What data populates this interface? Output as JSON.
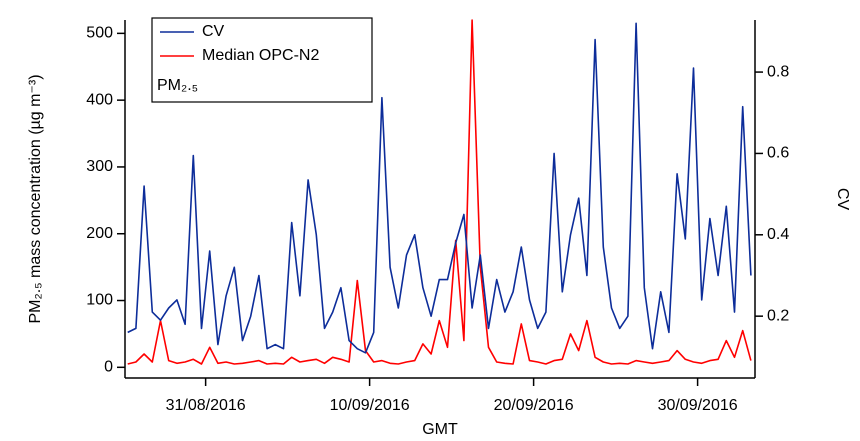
{
  "chart_data": {
    "type": "line",
    "x_label": "GMT",
    "y_label": "PM₂.₅ mass concentration (µg m⁻³)",
    "y2_label": "CV",
    "annotation": "PM₂.₅",
    "legend": "top-left",
    "xlim": [
      "2016-08-26T02:00",
      "2016-10-03T12:00"
    ],
    "xticks": [
      {
        "value": "2016-08-31T00:00",
        "label": "31/08/2016"
      },
      {
        "value": "2016-09-10T00:00",
        "label": "10/09/2016"
      },
      {
        "value": "2016-09-20T00:00",
        "label": "20/09/2016"
      },
      {
        "value": "2016-09-30T00:00",
        "label": "30/09/2016"
      }
    ],
    "ylim": [
      -16,
      520
    ],
    "yticks": [
      0,
      100,
      200,
      300,
      400,
      500
    ],
    "y2lim": [
      0.048,
      0.928
    ],
    "y2ticks": [
      0.2,
      0.4,
      0.6,
      0.8
    ],
    "x": [
      "2016-08-26T06:00",
      "2016-08-26T18:00",
      "2016-08-27T06:00",
      "2016-08-27T18:00",
      "2016-08-28T06:00",
      "2016-08-28T18:00",
      "2016-08-29T06:00",
      "2016-08-29T18:00",
      "2016-08-30T06:00",
      "2016-08-30T18:00",
      "2016-08-31T06:00",
      "2016-08-31T18:00",
      "2016-09-01T06:00",
      "2016-09-01T18:00",
      "2016-09-02T06:00",
      "2016-09-02T18:00",
      "2016-09-03T06:00",
      "2016-09-03T18:00",
      "2016-09-04T06:00",
      "2016-09-04T18:00",
      "2016-09-05T06:00",
      "2016-09-05T18:00",
      "2016-09-06T06:00",
      "2016-09-06T18:00",
      "2016-09-07T06:00",
      "2016-09-07T18:00",
      "2016-09-08T06:00",
      "2016-09-08T18:00",
      "2016-09-09T06:00",
      "2016-09-09T18:00",
      "2016-09-10T06:00",
      "2016-09-10T18:00",
      "2016-09-11T06:00",
      "2016-09-11T18:00",
      "2016-09-12T06:00",
      "2016-09-12T18:00",
      "2016-09-13T06:00",
      "2016-09-13T18:00",
      "2016-09-14T06:00",
      "2016-09-14T18:00",
      "2016-09-15T06:00",
      "2016-09-15T18:00",
      "2016-09-16T06:00",
      "2016-09-16T18:00",
      "2016-09-17T06:00",
      "2016-09-17T18:00",
      "2016-09-18T06:00",
      "2016-09-18T18:00",
      "2016-09-19T06:00",
      "2016-09-19T18:00",
      "2016-09-20T06:00",
      "2016-09-20T18:00",
      "2016-09-21T06:00",
      "2016-09-21T18:00",
      "2016-09-22T06:00",
      "2016-09-22T18:00",
      "2016-09-23T06:00",
      "2016-09-23T18:00",
      "2016-09-24T06:00",
      "2016-09-24T18:00",
      "2016-09-25T06:00",
      "2016-09-25T18:00",
      "2016-09-26T06:00",
      "2016-09-26T18:00",
      "2016-09-27T06:00",
      "2016-09-27T18:00",
      "2016-09-28T06:00",
      "2016-09-28T18:00",
      "2016-09-29T06:00",
      "2016-09-29T18:00",
      "2016-09-30T06:00",
      "2016-09-30T18:00",
      "2016-10-01T06:00",
      "2016-10-01T18:00",
      "2016-10-02T06:00",
      "2016-10-02T18:00",
      "2016-10-03T06:00"
    ],
    "series": [
      {
        "name": "CV",
        "color": "#0d2d9a",
        "axis": "y2",
        "values": [
          0.16,
          0.17,
          0.52,
          0.21,
          0.19,
          0.22,
          0.24,
          0.18,
          0.595,
          0.17,
          0.36,
          0.13,
          0.25,
          0.32,
          0.14,
          0.2,
          0.3,
          0.12,
          0.13,
          0.12,
          0.43,
          0.25,
          0.535,
          0.4,
          0.17,
          0.21,
          0.27,
          0.14,
          0.12,
          0.11,
          0.16,
          0.737,
          0.32,
          0.22,
          0.35,
          0.4,
          0.27,
          0.2,
          0.29,
          0.29,
          0.38,
          0.45,
          0.22,
          0.35,
          0.17,
          0.29,
          0.21,
          0.26,
          0.37,
          0.24,
          0.17,
          0.21,
          0.6,
          0.26,
          0.4,
          0.49,
          0.3,
          0.88,
          0.37,
          0.22,
          0.17,
          0.2,
          0.92,
          0.27,
          0.12,
          0.26,
          0.16,
          0.55,
          0.39,
          0.81,
          0.24,
          0.44,
          0.3,
          0.47,
          0.21,
          0.715,
          0.3
        ]
      },
      {
        "name": "Median OPC-N2",
        "color": "#ff0000",
        "values": [
          5,
          8,
          20,
          8,
          70,
          10,
          6,
          8,
          12,
          5,
          30,
          6,
          8,
          5,
          6,
          8,
          10,
          5,
          6,
          5,
          15,
          8,
          10,
          12,
          6,
          15,
          12,
          8,
          130,
          25,
          8,
          10,
          6,
          5,
          8,
          10,
          35,
          20,
          70,
          30,
          190,
          40,
          520,
          150,
          30,
          8,
          6,
          5,
          65,
          10,
          8,
          5,
          10,
          12,
          50,
          25,
          70,
          15,
          8,
          5,
          6,
          5,
          10,
          8,
          6,
          8,
          10,
          25,
          12,
          8,
          6,
          10,
          12,
          40,
          15,
          55,
          10
        ]
      }
    ]
  }
}
